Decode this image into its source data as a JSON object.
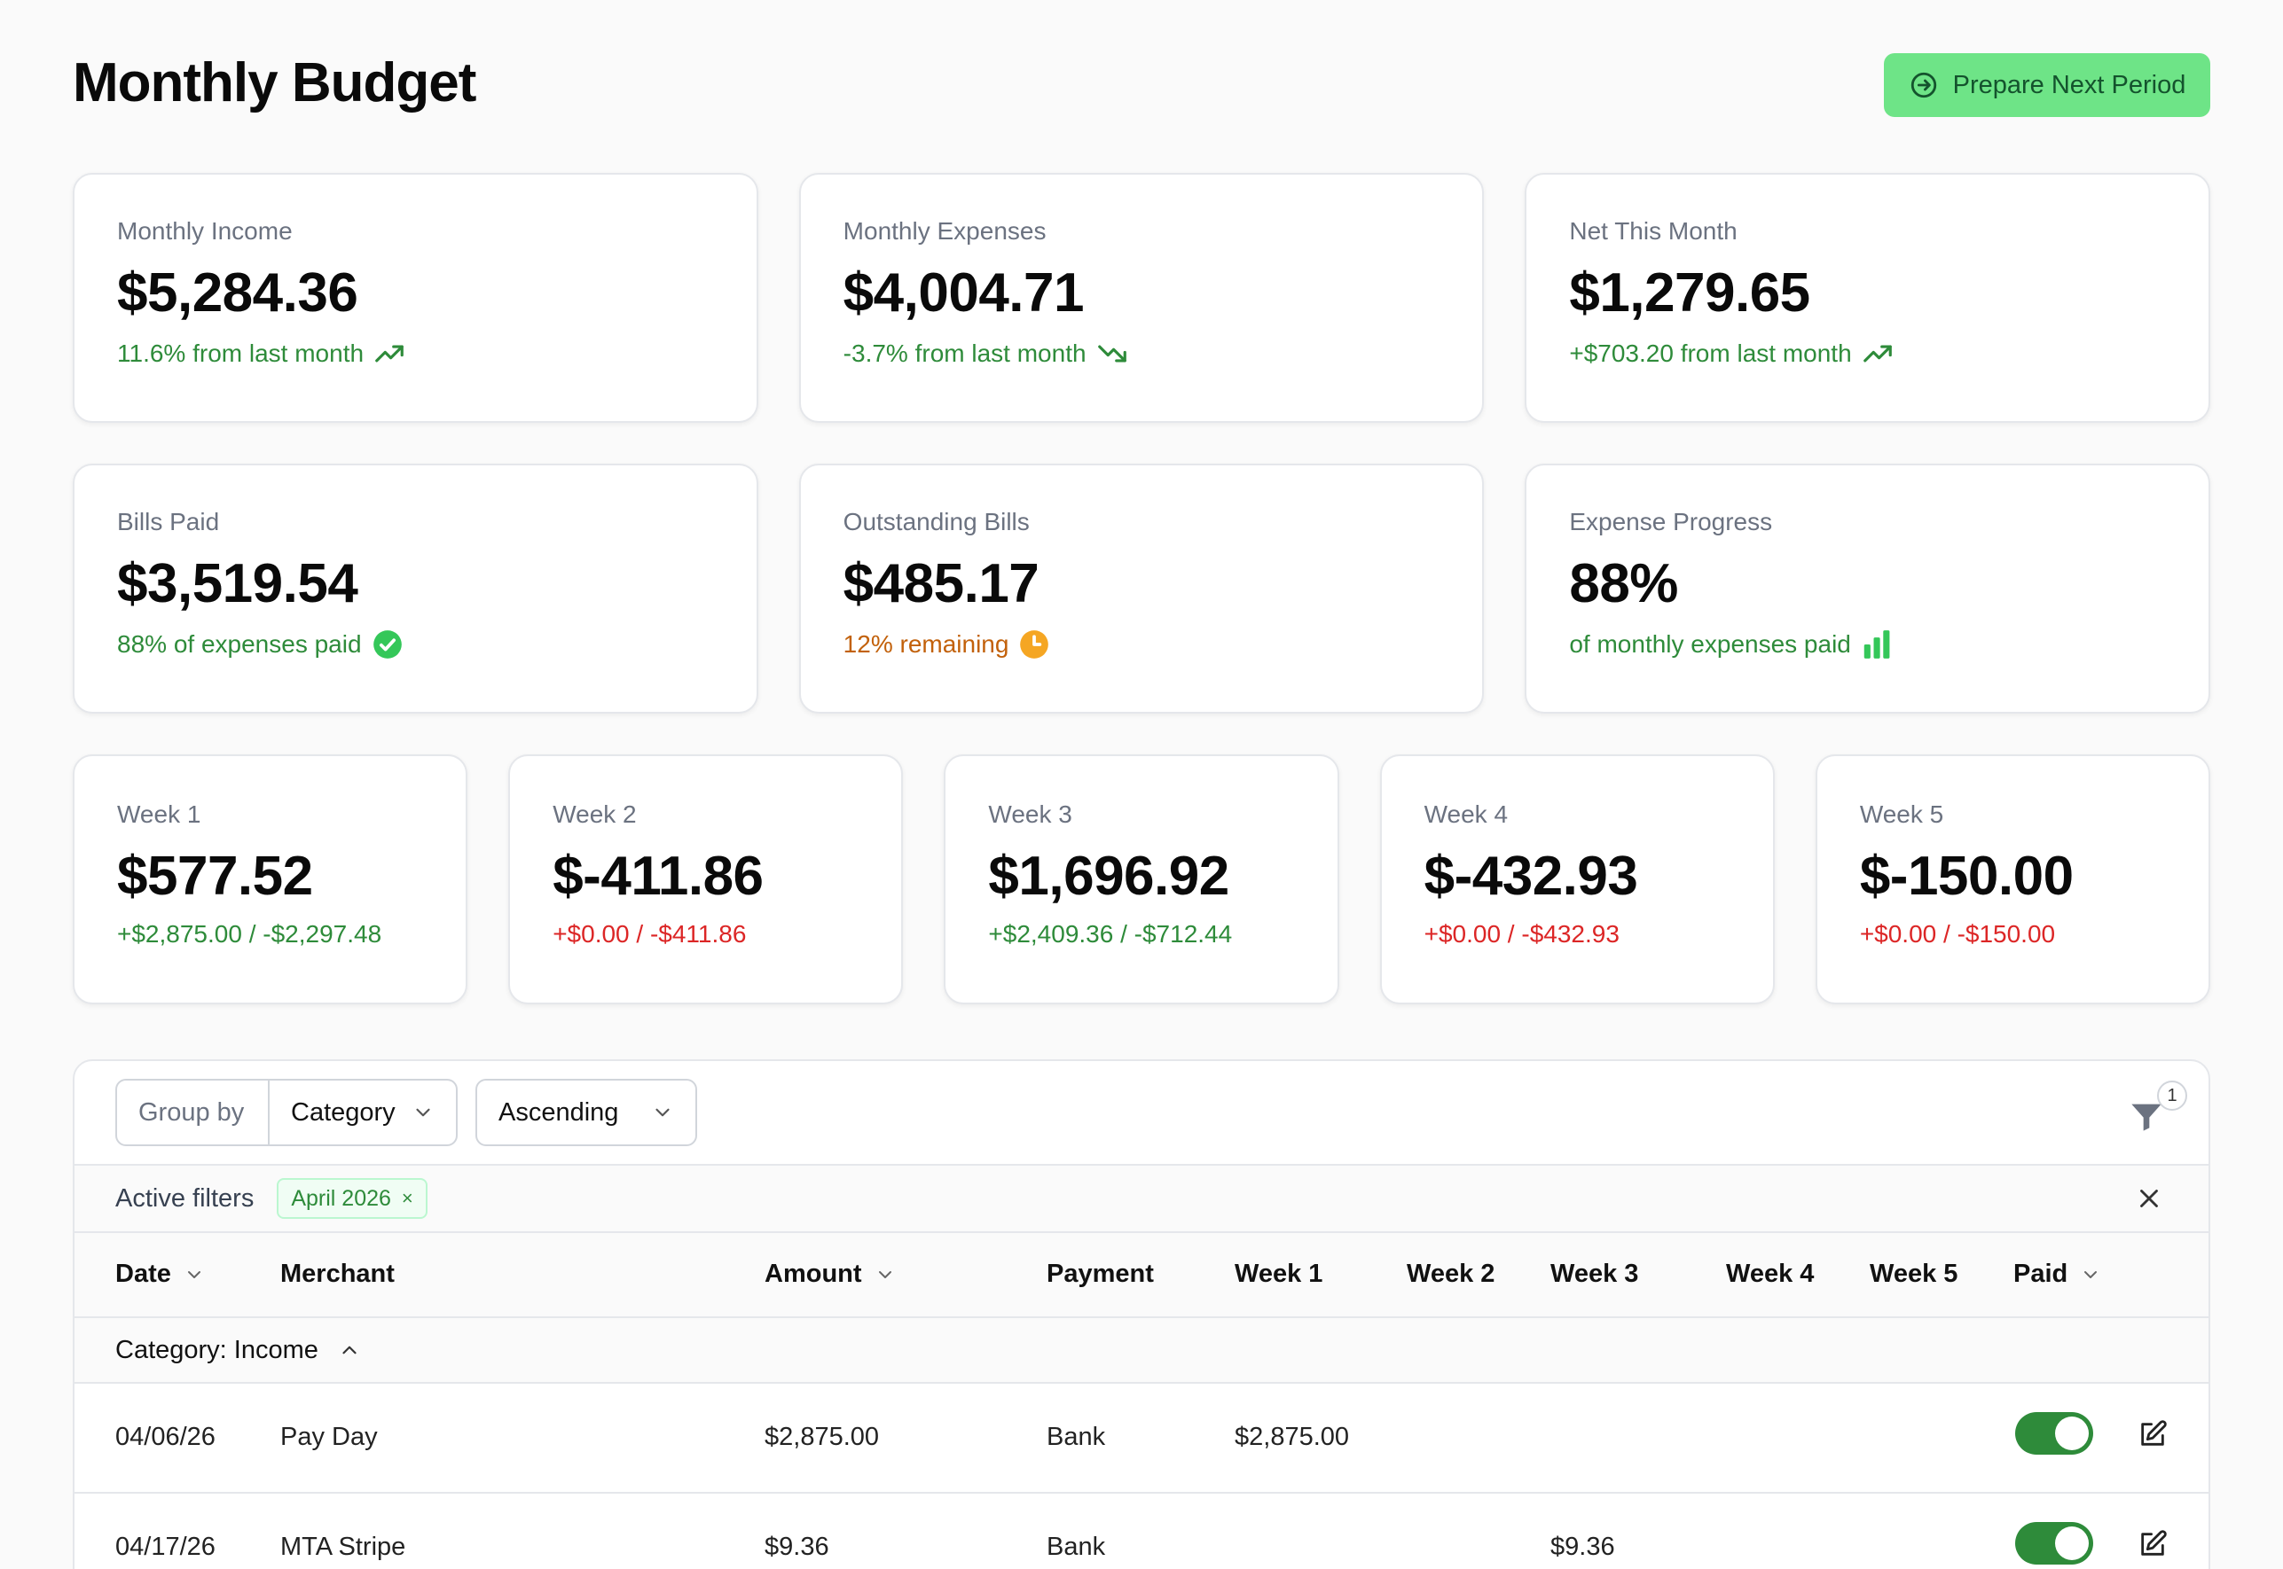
{
  "header": {
    "title": "Monthly Budget",
    "primary_button": "Prepare Next Period"
  },
  "summary_cards": [
    {
      "label": "Monthly Income",
      "value": "$5,284.36",
      "sub": "11.6% from last month",
      "sub_color": "#2e8b3a",
      "icon": "trending-up-icon"
    },
    {
      "label": "Monthly Expenses",
      "value": "$4,004.71",
      "sub": "-3.7% from last month",
      "sub_color": "#2e8b3a",
      "icon": "trending-down-icon"
    },
    {
      "label": "Net This Month",
      "value": "$1,279.65",
      "sub": "+$703.20 from last month",
      "sub_color": "#2e8b3a",
      "icon": "trending-up-icon"
    }
  ],
  "bill_cards": [
    {
      "label": "Bills Paid",
      "value": "$3,519.54",
      "sub": "88% of expenses paid",
      "sub_color": "#2e8b3a",
      "icon": "check-circle-icon"
    },
    {
      "label": "Outstanding Bills",
      "value": "$485.17",
      "sub": "12% remaining",
      "sub_color": "#c2610b",
      "icon": "clock-icon"
    },
    {
      "label": "Expense Progress",
      "value": "88%",
      "sub": "of monthly expenses paid",
      "sub_color": "#2e8b3a",
      "icon": "bar-chart-icon"
    }
  ],
  "week_cards": [
    {
      "label": "Week 1",
      "value": "$577.52",
      "sub": "+$2,875.00 / -$2,297.48",
      "sub_color": "#2e8b3a"
    },
    {
      "label": "Week 2",
      "value": "$-411.86",
      "sub": "+$0.00 / -$411.86",
      "sub_color": "#dc2626"
    },
    {
      "label": "Week 3",
      "value": "$1,696.92",
      "sub": "+$2,409.36 / -$712.44",
      "sub_color": "#2e8b3a"
    },
    {
      "label": "Week 4",
      "value": "$-432.93",
      "sub": "+$0.00 / -$432.93",
      "sub_color": "#dc2626"
    },
    {
      "label": "Week 5",
      "value": "$-150.00",
      "sub": "+$0.00 / -$150.00",
      "sub_color": "#dc2626"
    }
  ],
  "toolbar": {
    "group_by_label": "Group by",
    "group_by_value": "Category",
    "order_value": "Ascending",
    "filter_count": "1",
    "icon": "filter-icon"
  },
  "filters": {
    "label": "Active filters",
    "chips": [
      "April 2026"
    ],
    "chip_remove": "×"
  },
  "table": {
    "columns": {
      "date": "Date",
      "merchant": "Merchant",
      "amount": "Amount",
      "payment": "Payment",
      "week1": "Week 1",
      "week2": "Week 2",
      "week3": "Week 3",
      "week4": "Week 4",
      "week5": "Week 5",
      "paid": "Paid"
    },
    "group_label": "Category: Income",
    "rows": [
      {
        "date": "04/06/26",
        "merchant": "Pay Day",
        "amount": "$2,875.00",
        "payment": "Bank",
        "week1": "$2,875.00",
        "week2": "",
        "week3": "",
        "week4": "",
        "week5": "",
        "paid": true
      },
      {
        "date": "04/17/26",
        "merchant": "MTA Stripe",
        "amount": "$9.36",
        "payment": "Bank",
        "week1": "",
        "week2": "",
        "week3": "$9.36",
        "week4": "",
        "week5": "",
        "paid": true
      }
    ]
  },
  "colors": {
    "accent": "#6ee487",
    "positive": "#2e8b3a",
    "negative": "#dc2626",
    "warning": "#c2610b"
  }
}
